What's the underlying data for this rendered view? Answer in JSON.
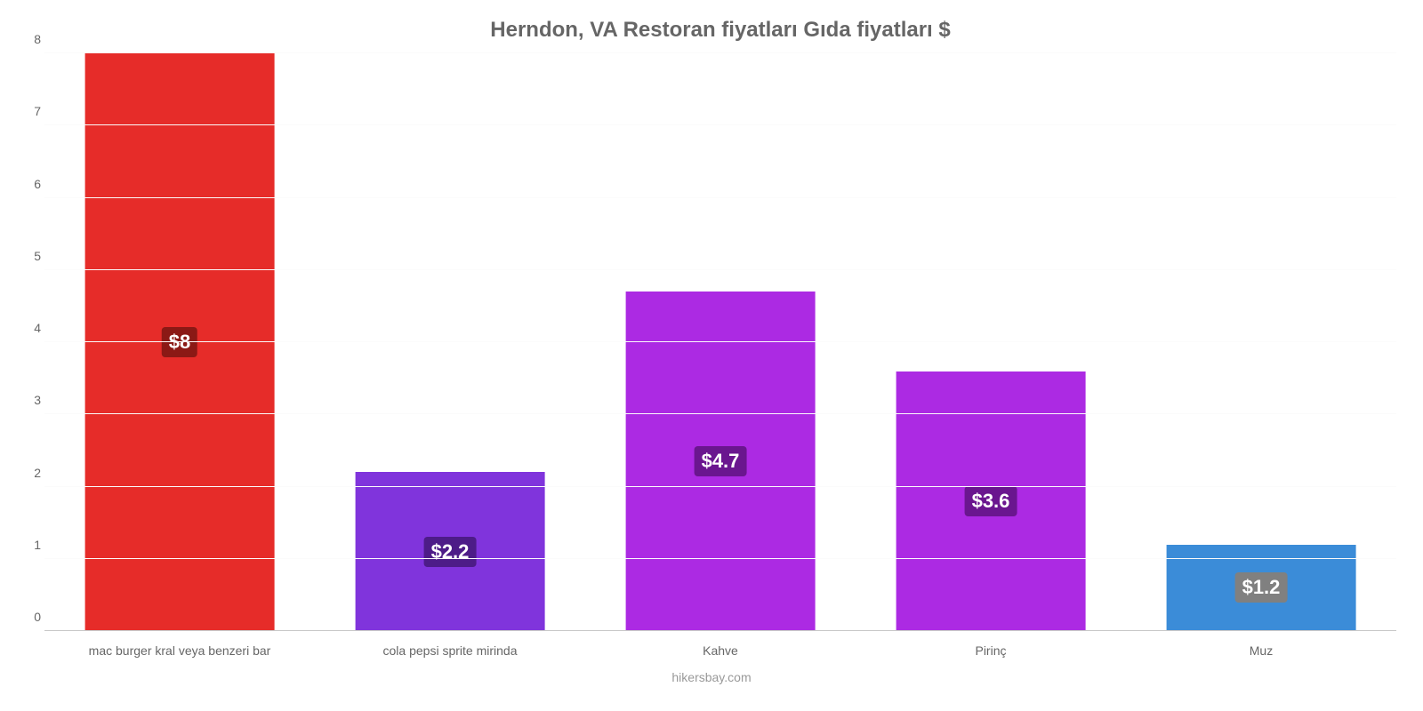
{
  "chart": {
    "type": "bar",
    "title": "Herndon, VA Restoran fiyatları Gıda fiyatları $",
    "title_fontsize": 24,
    "title_color": "#666666",
    "credit": "hikersbay.com",
    "credit_fontsize": 14,
    "credit_color": "#999999",
    "background_color": "#ffffff",
    "grid_color": "#fbfbfb",
    "baseline_color": "#c8c8c8",
    "axis_label_color": "#666666",
    "axis_label_fontsize": 14,
    "value_label_fontsize": 22,
    "value_label_color": "#ffffff",
    "ylim": [
      0,
      8
    ],
    "yticks": [
      0,
      1,
      2,
      3,
      4,
      5,
      6,
      7,
      8
    ],
    "bar_width_pct": 70,
    "categories": [
      "mac burger kral veya benzeri bar",
      "cola pepsi sprite mirinda",
      "Kahve",
      "Pirinç",
      "Muz"
    ],
    "values": [
      8,
      2.2,
      4.7,
      3.6,
      1.2
    ],
    "value_labels": [
      "$8",
      "$2.2",
      "$4.7",
      "$3.6",
      "$1.2"
    ],
    "bar_colors": [
      "#e62c29",
      "#8034dc",
      "#ac2ae3",
      "#ac2ae3",
      "#3b8cd8"
    ],
    "badge_colors": [
      "#8b1915",
      "#4d1c88",
      "#6a168f",
      "#6a168f",
      "#808080"
    ]
  }
}
